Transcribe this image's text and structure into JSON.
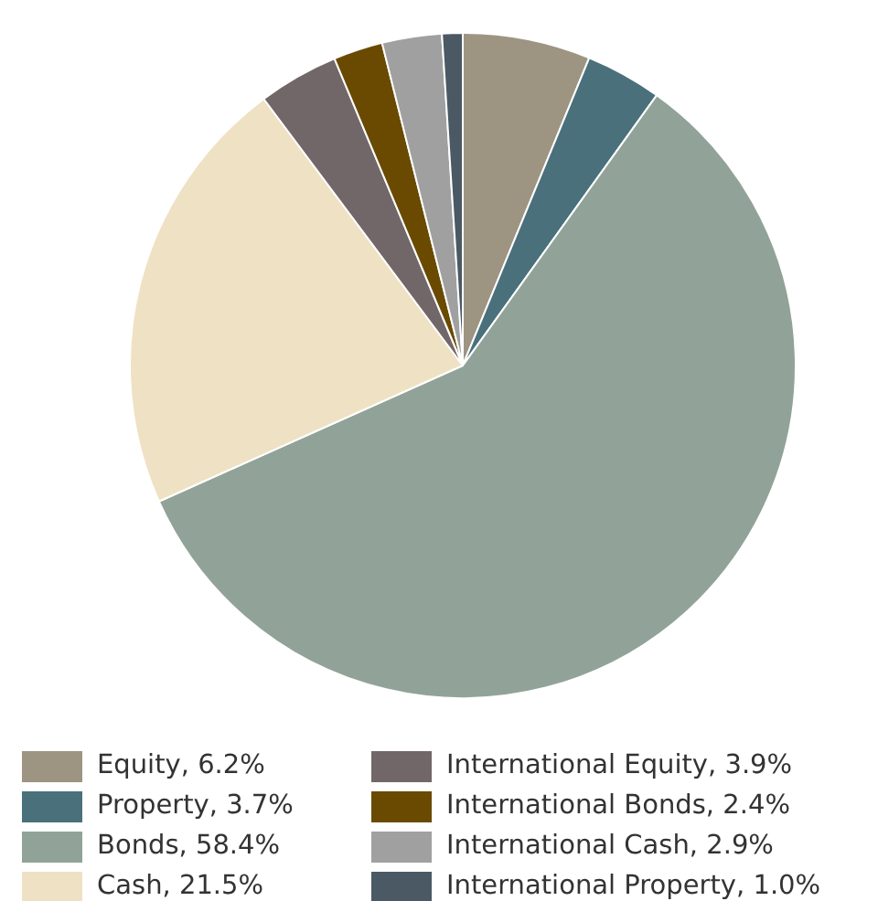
{
  "chart_data": {
    "type": "pie",
    "categories": [
      "Equity, 6.2%",
      "Property, 3.7%",
      "Bonds, 58.4%",
      "Cash, 21.5%",
      "International Equity, 3.9%",
      "International Bonds, 2.4%",
      "International Cash, 2.9%",
      "International Property, 1.0%"
    ],
    "values": [
      6.2,
      3.7,
      58.4,
      21.5,
      3.9,
      2.4,
      2.9,
      1.0
    ],
    "colors": [
      "#9d9482",
      "#4a707b",
      "#91a398",
      "#efe1c3",
      "#726768",
      "#694a00",
      "#a0a0a0",
      "#4a5964"
    ],
    "legend": "bottom"
  }
}
